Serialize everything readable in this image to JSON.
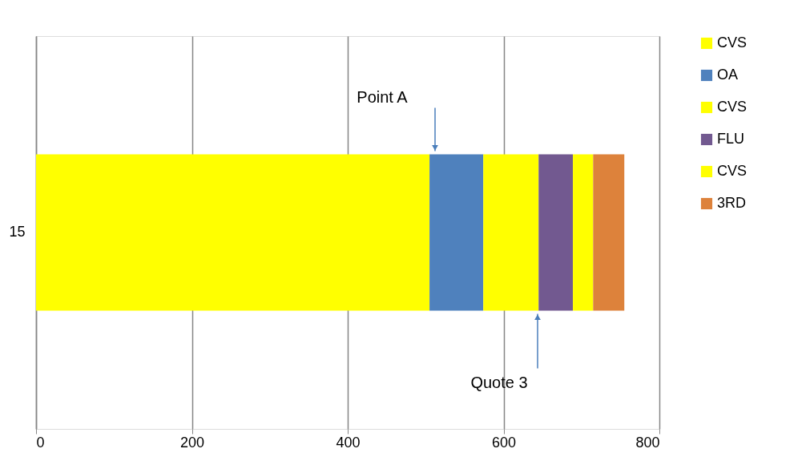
{
  "chart_data": {
    "type": "bar",
    "orientation": "horizontal",
    "stacked": true,
    "categories": [
      "15"
    ],
    "series": [
      {
        "name": "CVS",
        "color": "#ffff00",
        "values": [
          505
        ]
      },
      {
        "name": "OA",
        "color": "#4f81bd",
        "values": [
          69
        ]
      },
      {
        "name": "CVS",
        "color": "#ffff00",
        "values": [
          71
        ]
      },
      {
        "name": "FLU",
        "color": "#725990",
        "values": [
          44
        ]
      },
      {
        "name": "CVS",
        "color": "#ffff00",
        "values": [
          26
        ]
      },
      {
        "name": "3RD",
        "color": "#dd823b",
        "values": [
          40
        ]
      }
    ],
    "xlim": [
      0,
      800
    ],
    "xticks": [
      0,
      200,
      400,
      600,
      800
    ],
    "grid": "x",
    "legend": "right",
    "annotations": [
      "Point A",
      "Quote 3"
    ]
  }
}
